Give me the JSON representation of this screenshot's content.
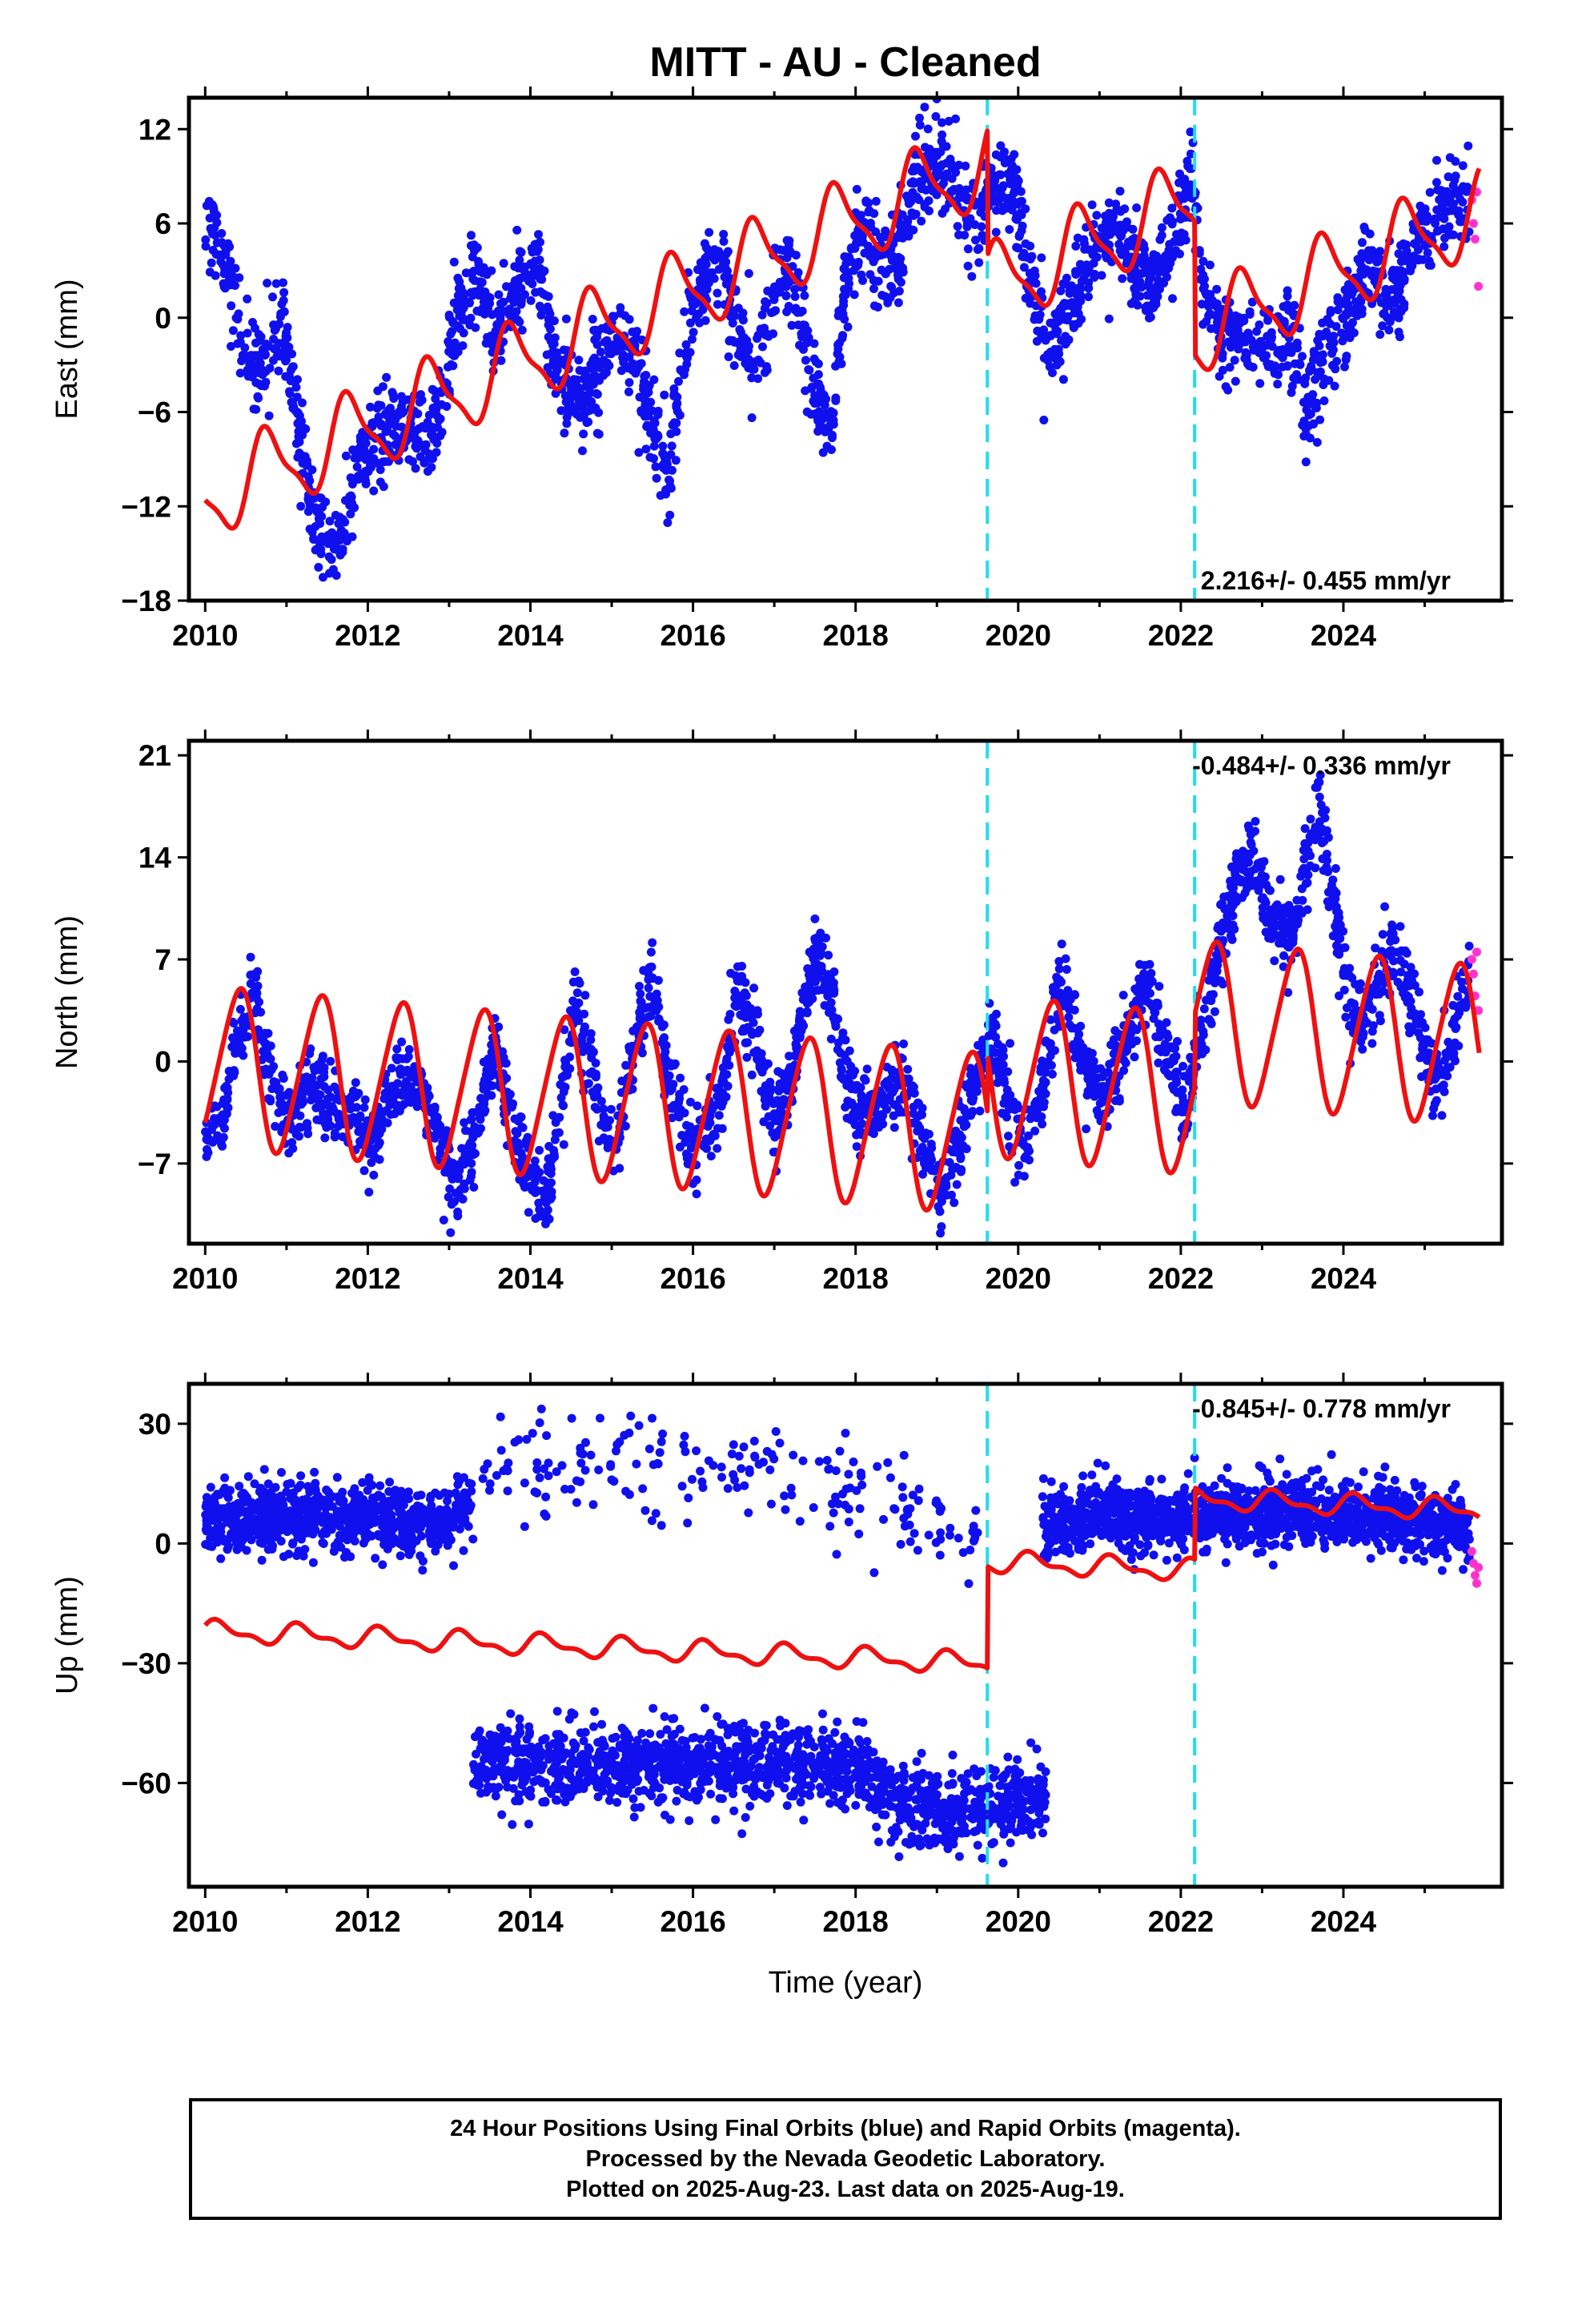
{
  "chart_data": {
    "type": "scatter",
    "title": "MITT  - AU - Cleaned",
    "xlabel": "Time (year)",
    "xlim": [
      2009.8,
      2025.95
    ],
    "x_ticks": [
      2010,
      2012,
      2014,
      2016,
      2018,
      2020,
      2022,
      2024
    ],
    "offset_epochs": [
      2019.62,
      2022.17
    ],
    "last_final_epoch": 2025.55,
    "colors": {
      "final": "#1010ee",
      "rapid": "#ff33cc",
      "model": "#ee1111",
      "offset": "#22ddee"
    },
    "legend": "none",
    "grid": false,
    "panels": [
      {
        "ylabel": "East (mm)",
        "ylim": [
          -18,
          14
        ],
        "y_ticks": [
          -18,
          -12,
          -6,
          0,
          6,
          12
        ],
        "y_tick_labels": [
          "−18",
          "−12",
          "−6",
          "0",
          "6",
          "12"
        ],
        "velocity": "2.216+/- 0.455 mm/yr",
        "velocity_pos": "bottom-right",
        "observed_keypoints": [
          [
            2010.0,
            4.5
          ],
          [
            2010.1,
            5.5
          ],
          [
            2010.3,
            2.5
          ],
          [
            2010.45,
            -1.5
          ],
          [
            2010.6,
            -3.0
          ],
          [
            2010.8,
            -2.5
          ],
          [
            2010.95,
            0.0
          ],
          [
            2011.1,
            -5.5
          ],
          [
            2011.3,
            -12.0
          ],
          [
            2011.5,
            -15.5
          ],
          [
            2011.7,
            -13.0
          ],
          [
            2011.9,
            -9.5
          ],
          [
            2012.2,
            -6.5
          ],
          [
            2012.5,
            -7.0
          ],
          [
            2012.8,
            -7.5
          ],
          [
            2013.1,
            0.0
          ],
          [
            2013.3,
            3.0
          ],
          [
            2013.55,
            -1.0
          ],
          [
            2013.8,
            1.5
          ],
          [
            2014.1,
            3.5
          ],
          [
            2014.3,
            -3.0
          ],
          [
            2014.55,
            -5.5
          ],
          [
            2014.8,
            -3.5
          ],
          [
            2015.1,
            -1.0
          ],
          [
            2015.3,
            -2.5
          ],
          [
            2015.55,
            -7.5
          ],
          [
            2015.7,
            -10.0
          ],
          [
            2015.85,
            -3.0
          ],
          [
            2016.1,
            2.5
          ],
          [
            2016.35,
            4.0
          ],
          [
            2016.6,
            -2.0
          ],
          [
            2016.8,
            -3.0
          ],
          [
            2017.0,
            1.5
          ],
          [
            2017.2,
            3.5
          ],
          [
            2017.35,
            -1.0
          ],
          [
            2017.55,
            -5.5
          ],
          [
            2017.7,
            -7.0
          ],
          [
            2017.85,
            1.5
          ],
          [
            2018.1,
            5.5
          ],
          [
            2018.3,
            4.0
          ],
          [
            2018.5,
            3.0
          ],
          [
            2018.7,
            8.0
          ],
          [
            2018.9,
            10.0
          ],
          [
            2019.1,
            9.5
          ],
          [
            2019.3,
            7.5
          ],
          [
            2019.5,
            5.5
          ],
          [
            2019.6,
            7.0
          ],
          [
            2019.75,
            9.0
          ],
          [
            2019.95,
            8.5
          ],
          [
            2020.15,
            2.0
          ],
          [
            2020.4,
            -2.0
          ],
          [
            2020.6,
            0.5
          ],
          [
            2020.8,
            2.5
          ],
          [
            2021.0,
            5.0
          ],
          [
            2021.2,
            6.0
          ],
          [
            2021.4,
            4.0
          ],
          [
            2021.6,
            2.0
          ],
          [
            2021.8,
            3.5
          ],
          [
            2022.0,
            6.5
          ],
          [
            2022.15,
            9.0
          ],
          [
            2022.25,
            3.0
          ],
          [
            2022.5,
            -1.5
          ],
          [
            2022.7,
            -1.0
          ],
          [
            2022.9,
            -2.5
          ],
          [
            2023.2,
            -1.5
          ],
          [
            2023.4,
            -2.0
          ],
          [
            2023.55,
            -6.0
          ],
          [
            2023.7,
            -3.0
          ],
          [
            2023.9,
            -1.0
          ],
          [
            2024.1,
            1.5
          ],
          [
            2024.3,
            3.5
          ],
          [
            2024.5,
            1.0
          ],
          [
            2024.7,
            2.5
          ],
          [
            2024.9,
            4.5
          ],
          [
            2025.1,
            6.5
          ],
          [
            2025.3,
            7.5
          ],
          [
            2025.5,
            8.0
          ]
        ],
        "noise_sd": 1.4,
        "model": {
          "breaks": [
            [
              2019.62,
              -8.0
            ],
            [
              2022.17,
              -8.5
            ]
          ],
          "trend_at_2010": -11.5,
          "annual_sin": -2.5,
          "annual_cos": 0.3,
          "semiannual_sin": 0.6,
          "semiannual_cos": -0.4
        },
        "rapid_points": [
          [
            2025.58,
            7.5
          ],
          [
            2025.6,
            6.0
          ],
          [
            2025.62,
            5.0
          ],
          [
            2025.64,
            8.0
          ],
          [
            2025.66,
            2.0
          ]
        ]
      },
      {
        "ylabel": "North (mm)",
        "ylim": [
          -12.5,
          22
        ],
        "y_ticks": [
          -7,
          0,
          7,
          14,
          21
        ],
        "y_tick_labels": [
          "−7",
          "0",
          "7",
          "14",
          "21"
        ],
        "velocity": "-0.484+/- 0.336 mm/yr",
        "velocity_pos": "top-right",
        "observed_keypoints": [
          [
            2010.0,
            -5.5
          ],
          [
            2010.2,
            -4.0
          ],
          [
            2010.5,
            3.5
          ],
          [
            2010.6,
            4.5
          ],
          [
            2010.8,
            -1.0
          ],
          [
            2011.0,
            -4.5
          ],
          [
            2011.3,
            -1.5
          ],
          [
            2011.55,
            -3.0
          ],
          [
            2011.8,
            -4.0
          ],
          [
            2012.05,
            -6.0
          ],
          [
            2012.3,
            -2.0
          ],
          [
            2012.6,
            -1.5
          ],
          [
            2012.8,
            -4.0
          ],
          [
            2013.05,
            -8.5
          ],
          [
            2013.3,
            -6.0
          ],
          [
            2013.55,
            1.0
          ],
          [
            2013.8,
            -4.5
          ],
          [
            2014.05,
            -8.5
          ],
          [
            2014.2,
            -10.0
          ],
          [
            2014.35,
            -4.0
          ],
          [
            2014.55,
            4.0
          ],
          [
            2014.8,
            -2.0
          ],
          [
            2015.05,
            -6.5
          ],
          [
            2015.3,
            2.0
          ],
          [
            2015.5,
            6.0
          ],
          [
            2015.7,
            -1.5
          ],
          [
            2016.0,
            -6.0
          ],
          [
            2016.3,
            -3.5
          ],
          [
            2016.55,
            5.0
          ],
          [
            2016.75,
            2.0
          ],
          [
            2017.0,
            -4.5
          ],
          [
            2017.2,
            -1.0
          ],
          [
            2017.5,
            7.5
          ],
          [
            2017.7,
            5.0
          ],
          [
            2017.9,
            -2.0
          ],
          [
            2018.1,
            -4.0
          ],
          [
            2018.3,
            -3.5
          ],
          [
            2018.55,
            -1.0
          ],
          [
            2018.8,
            -5.0
          ],
          [
            2019.05,
            -9.0
          ],
          [
            2019.3,
            -4.5
          ],
          [
            2019.55,
            0.0
          ],
          [
            2019.7,
            1.5
          ],
          [
            2019.9,
            -3.5
          ],
          [
            2020.1,
            -6.0
          ],
          [
            2020.3,
            -1.5
          ],
          [
            2020.55,
            5.5
          ],
          [
            2020.8,
            0.0
          ],
          [
            2021.05,
            -2.5
          ],
          [
            2021.3,
            1.0
          ],
          [
            2021.6,
            5.0
          ],
          [
            2021.8,
            1.0
          ],
          [
            2022.05,
            -3.5
          ],
          [
            2022.2,
            0.5
          ],
          [
            2022.4,
            5.5
          ],
          [
            2022.65,
            12.0
          ],
          [
            2022.9,
            14.5
          ],
          [
            2023.15,
            9.0
          ],
          [
            2023.4,
            8.5
          ],
          [
            2023.55,
            14.0
          ],
          [
            2023.7,
            17.5
          ],
          [
            2023.9,
            10.0
          ],
          [
            2024.15,
            2.0
          ],
          [
            2024.4,
            4.5
          ],
          [
            2024.6,
            8.0
          ],
          [
            2024.85,
            4.0
          ],
          [
            2025.1,
            -1.5
          ],
          [
            2025.3,
            0.5
          ],
          [
            2025.5,
            5.0
          ]
        ],
        "noise_sd": 1.3,
        "model": {
          "breaks": [
            [
              2019.62,
              4.0
            ],
            [
              2022.17,
              5.0
            ]
          ],
          "trend_at_2010": -0.3,
          "annual_sin": 3.0,
          "annual_cos": -4.5,
          "semiannual_sin": 0.3,
          "semiannual_cos": 0.6
        },
        "rapid_points": [
          [
            2025.58,
            7.0
          ],
          [
            2025.6,
            6.0
          ],
          [
            2025.62,
            4.5
          ],
          [
            2025.64,
            7.5
          ],
          [
            2025.66,
            3.5
          ]
        ]
      },
      {
        "ylabel": "Up (mm)",
        "ylim": [
          -86,
          40
        ],
        "y_ticks": [
          -60,
          -30,
          0,
          30
        ],
        "y_tick_labels": [
          "−60",
          "−30",
          "0",
          "30"
        ],
        "velocity": "-0.845+/- 0.778 mm/yr",
        "velocity_pos": "top-right",
        "observed_keypoints": [
          [
            2010.0,
            6.0
          ],
          [
            2011.0,
            7.0
          ],
          [
            2012.0,
            7.0
          ],
          [
            2012.9,
            4.0
          ],
          [
            2013.3,
            10.0
          ]
        ],
        "observed_keypoints_high": [
          [
            2013.3,
            18.0
          ],
          [
            2014.5,
            20.0
          ],
          [
            2016.0,
            21.0
          ],
          [
            2017.5,
            16.0
          ],
          [
            2018.7,
            8.0
          ],
          [
            2019.4,
            2.0
          ]
        ],
        "observed_keypoints_low": [
          [
            2013.3,
            -54.0
          ],
          [
            2014.5,
            -56.0
          ],
          [
            2016.0,
            -55.0
          ],
          [
            2017.0,
            -55.0
          ],
          [
            2018.0,
            -56.0
          ],
          [
            2018.6,
            -66.0
          ],
          [
            2019.3,
            -68.0
          ],
          [
            2020.3,
            -63.0
          ]
        ],
        "observed_keypoints_late": [
          [
            2020.3,
            5.0
          ],
          [
            2021.0,
            7.0
          ],
          [
            2022.0,
            6.0
          ],
          [
            2023.0,
            8.0
          ],
          [
            2024.0,
            7.0
          ],
          [
            2025.0,
            6.0
          ],
          [
            2025.5,
            3.0
          ]
        ],
        "noise_sd": 4.0,
        "model": {
          "breaks": [
            [
              2019.62,
              25.5
            ],
            [
              2022.17,
              18.0
            ]
          ],
          "trend_at_2010": -22.0,
          "annual_sin": 2.0,
          "annual_cos": 1.0,
          "semiannual_sin": 1.0,
          "semiannual_cos": 0.5
        },
        "rapid_points": [
          [
            2025.58,
            -2.0
          ],
          [
            2025.6,
            -5.0
          ],
          [
            2025.62,
            -8.0
          ],
          [
            2025.64,
            -10.0
          ],
          [
            2025.66,
            -6.0
          ]
        ]
      }
    ]
  },
  "footer": {
    "line1": "24 Hour Positions Using Final Orbits (blue) and Rapid Orbits (magenta).",
    "line2": "Processed by the Nevada Geodetic Laboratory.",
    "line3": "Plotted on 2025-Aug-23. Last data on 2025-Aug-19."
  }
}
